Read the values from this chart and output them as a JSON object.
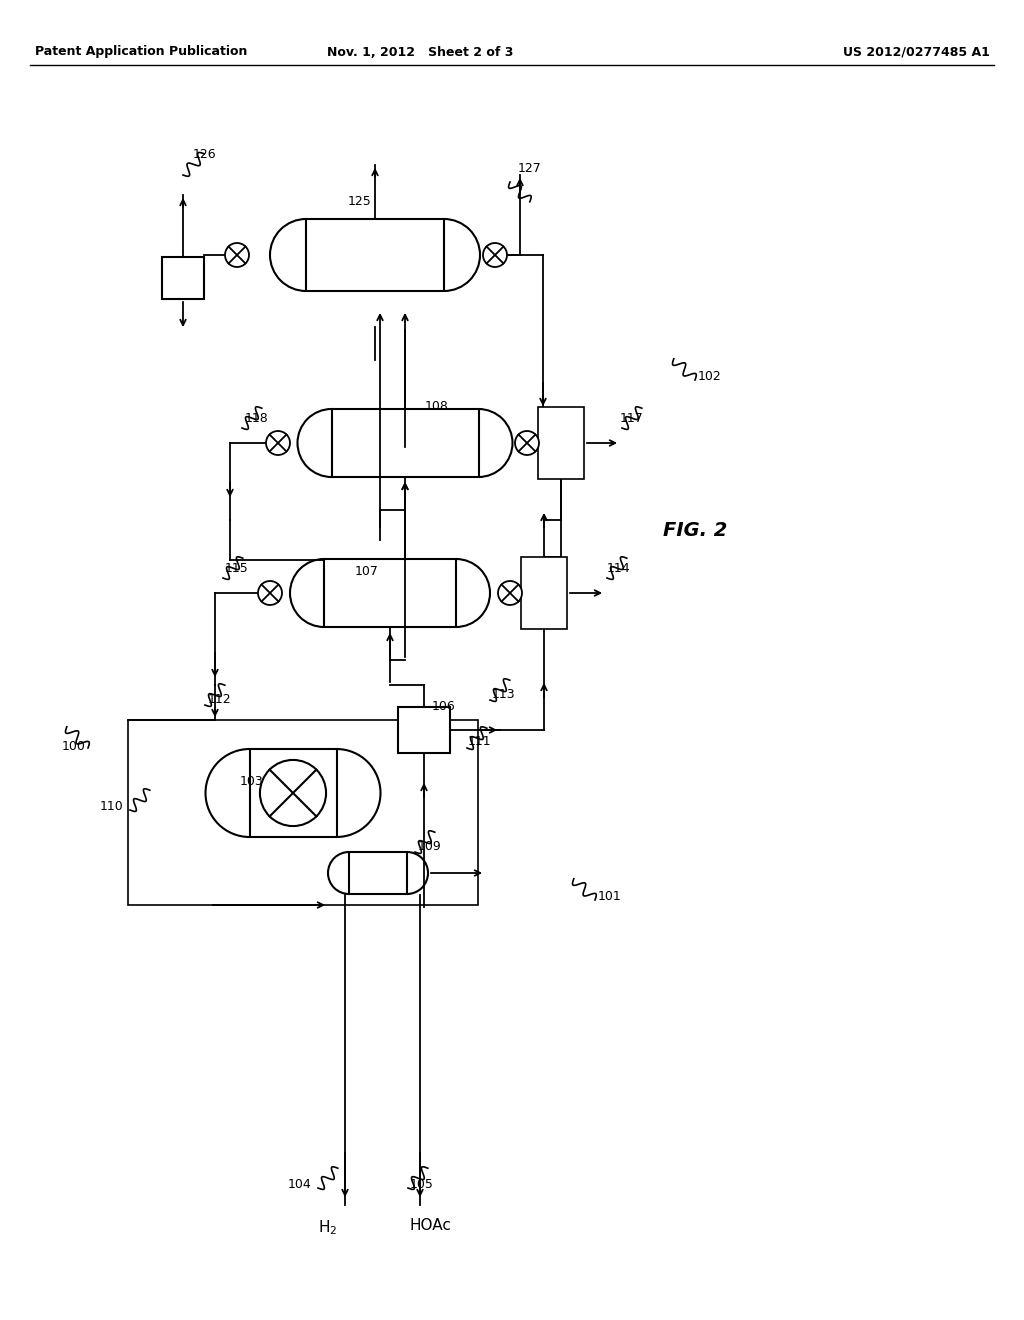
{
  "bg_color": "#ffffff",
  "header_left": "Patent Application Publication",
  "header_mid": "Nov. 1, 2012   Sheet 2 of 3",
  "header_right": "US 2012/0277485 A1",
  "fig_label": "FIG. 2"
}
